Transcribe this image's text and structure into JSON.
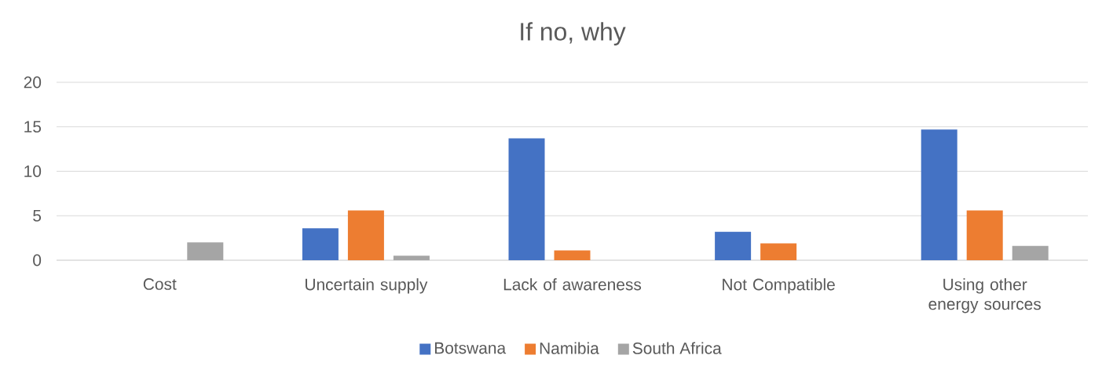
{
  "chart_data": {
    "type": "bar",
    "title": "If no, why",
    "categories": [
      "Cost",
      "Uncertain supply",
      "Lack of awareness",
      "Not Compatible",
      "Using other energy sources"
    ],
    "series": [
      {
        "name": "Botswana",
        "color": "#4472c4",
        "values": [
          0,
          3.6,
          13.7,
          3.2,
          14.7
        ]
      },
      {
        "name": "Namibia",
        "color": "#ed7d31",
        "values": [
          0,
          5.6,
          1.1,
          1.9,
          5.6
        ]
      },
      {
        "name": "South Africa",
        "color": "#a5a5a5",
        "values": [
          2.0,
          0.5,
          0,
          0,
          1.6
        ]
      }
    ],
    "ylim": [
      0,
      20
    ],
    "yticks": [
      0,
      5,
      10,
      15,
      20
    ],
    "grid": "y",
    "legend": "bottom"
  }
}
